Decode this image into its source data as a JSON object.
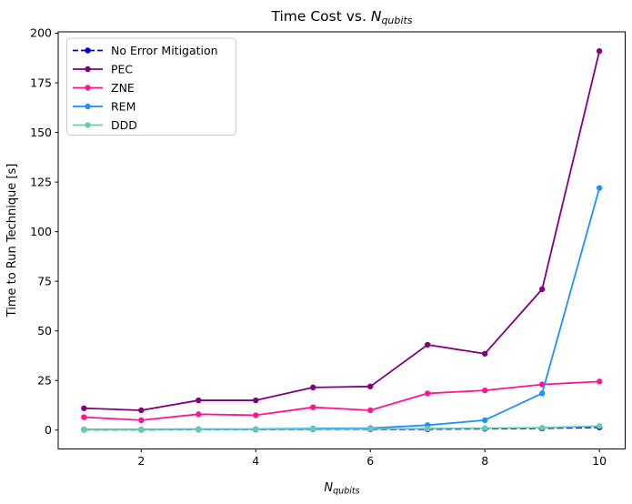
{
  "chart": {
    "title_prefix": "Time Cost vs. ",
    "title_math_main": "N",
    "title_math_sub": "qubits",
    "ylabel": "Time to Run Technique [s]",
    "xlabel_main": "N",
    "xlabel_sub": "qubits"
  },
  "chart_data": {
    "type": "line",
    "title": "Time Cost vs. N_qubits",
    "xlabel": "N_qubits",
    "ylabel": "Time to Run Technique [s]",
    "x": [
      1,
      2,
      3,
      4,
      5,
      6,
      7,
      8,
      9,
      10
    ],
    "series": [
      {
        "name": "No Error Mitigation",
        "color": "#0000CD",
        "linestyle": "dashed",
        "values": [
          0.2,
          0.2,
          0.3,
          0.3,
          0.4,
          0.4,
          0.5,
          0.7,
          0.9,
          1.4
        ]
      },
      {
        "name": "PEC",
        "color": "#800080",
        "linestyle": "solid",
        "values": [
          11,
          10,
          15,
          15,
          21.5,
          22,
          43,
          38.5,
          71,
          191
        ]
      },
      {
        "name": "ZNE",
        "color": "#FF1493",
        "linestyle": "solid",
        "values": [
          6.5,
          5,
          8,
          7.5,
          11.5,
          10,
          18.5,
          20,
          23,
          24.5
        ]
      },
      {
        "name": "REM",
        "color": "#1E90FF",
        "linestyle": "solid",
        "values": [
          0.4,
          0.4,
          0.5,
          0.5,
          0.8,
          1.0,
          2.5,
          5,
          18.5,
          122
        ]
      },
      {
        "name": "DDD",
        "color": "#66CDAA",
        "linestyle": "solid",
        "values": [
          0.3,
          0.3,
          0.4,
          0.4,
          0.5,
          0.6,
          0.8,
          1.0,
          1.2,
          2.0
        ]
      }
    ],
    "xlim": [
      0.55,
      10.45
    ],
    "ylim": [
      -9.5,
      200.7
    ],
    "xticks": [
      2,
      4,
      6,
      8,
      10
    ],
    "yticks": [
      0,
      25,
      50,
      75,
      100,
      125,
      150,
      175,
      200
    ],
    "grid": false,
    "legend_position": "upper left",
    "frame_color": "#000000",
    "background_color": "#ffffff",
    "legend_edge_color": "#cccccc"
  }
}
